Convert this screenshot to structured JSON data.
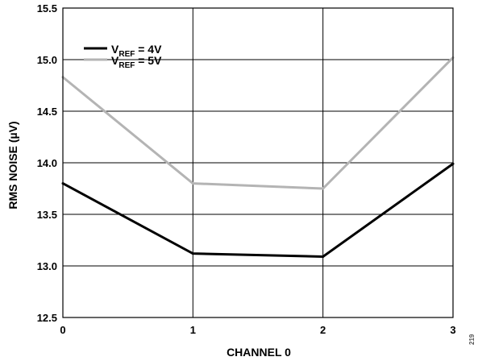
{
  "chart_data": {
    "type": "line",
    "xlabel": "CHANNEL 0",
    "ylabel": "RMS NOISE (µV)",
    "x": [
      0,
      1,
      2,
      3
    ],
    "x_tick_labels": [
      "0",
      "1",
      "2",
      "3"
    ],
    "y_tick_labels": [
      "12.5",
      "13.0",
      "13.5",
      "14.0",
      "14.5",
      "15.0",
      "15.5"
    ],
    "xlim": [
      0,
      3
    ],
    "ylim": [
      12.5,
      15.5
    ],
    "grid": true,
    "legend_position": "top-left",
    "series": [
      {
        "legend_main": "V",
        "legend_sub": "REF",
        "legend_rest": " = 4V",
        "color": "#000000",
        "values": [
          13.8,
          13.12,
          13.09,
          13.99
        ]
      },
      {
        "legend_main": "V",
        "legend_sub": "REF",
        "legend_rest": " = 5V",
        "color": "#b4b4b4",
        "values": [
          14.83,
          13.8,
          13.75,
          15.02
        ]
      }
    ],
    "figure_id": "219"
  }
}
